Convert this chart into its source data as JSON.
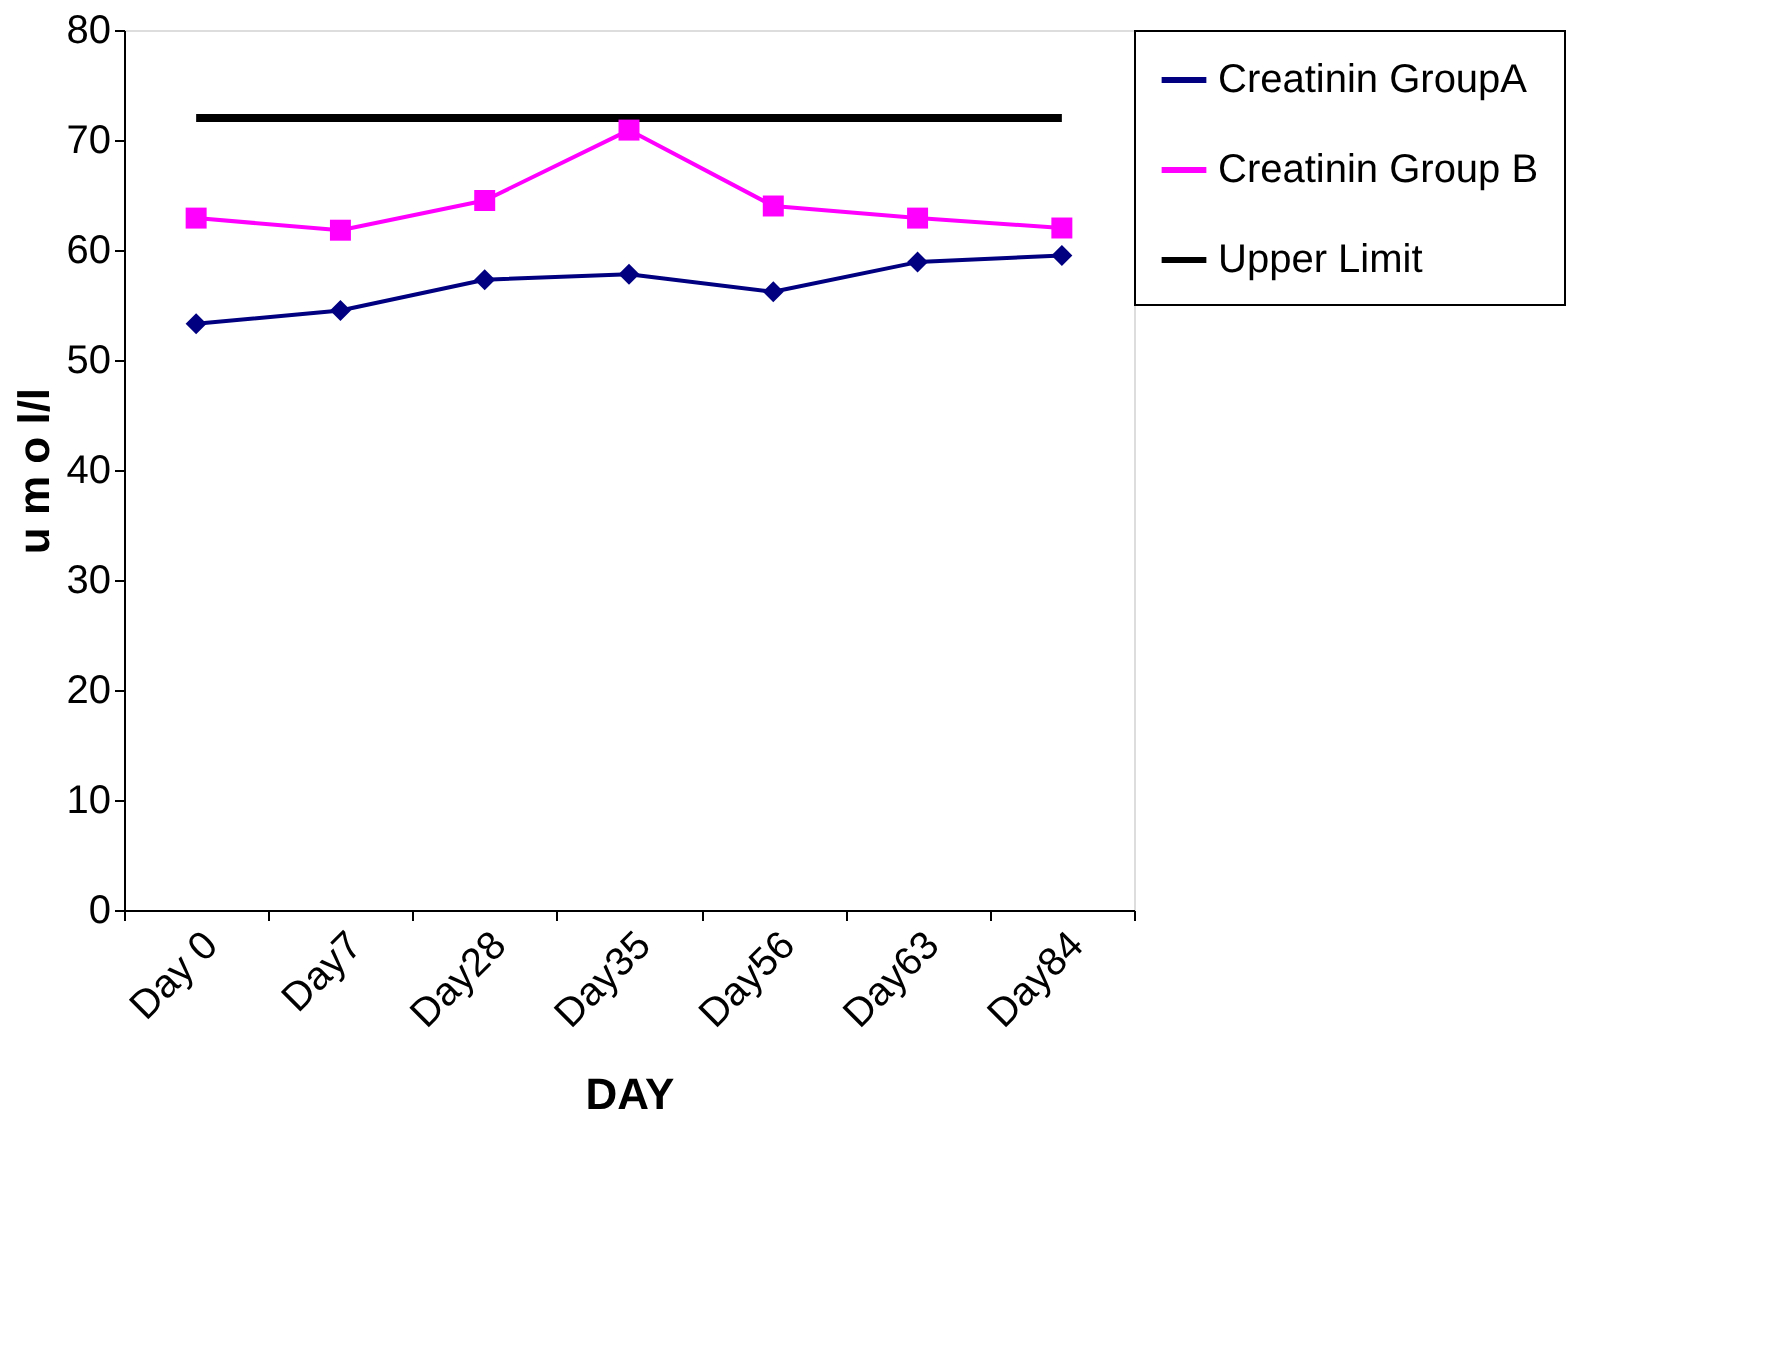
{
  "chart_data": {
    "type": "line",
    "xlabel": "DAY",
    "ylabel": "u m o l/l",
    "categories": [
      "Day 0",
      "Day7",
      "Day28",
      "Day35",
      "Day56",
      "Day63",
      "Day84"
    ],
    "series": [
      {
        "name": "Creatinin GroupA",
        "color": "#000080",
        "marker": "diamond",
        "values": [
          53.3,
          54.5,
          57.3,
          57.8,
          56.2,
          58.9,
          59.5
        ]
      },
      {
        "name": "Creatinin Group B",
        "color": "#ff00ff",
        "marker": "square",
        "values": [
          62.9,
          61.8,
          64.5,
          70.9,
          64.0,
          62.9,
          62.0
        ]
      },
      {
        "name": "Upper Limit",
        "color": "#000000",
        "marker": "none",
        "values": [
          72,
          72,
          72,
          72,
          72,
          72,
          72
        ]
      }
    ],
    "ylim": [
      0,
      80
    ],
    "yticks": [
      0,
      10,
      20,
      30,
      40,
      50,
      60,
      70,
      80
    ],
    "grid": false,
    "legend": "right"
  }
}
